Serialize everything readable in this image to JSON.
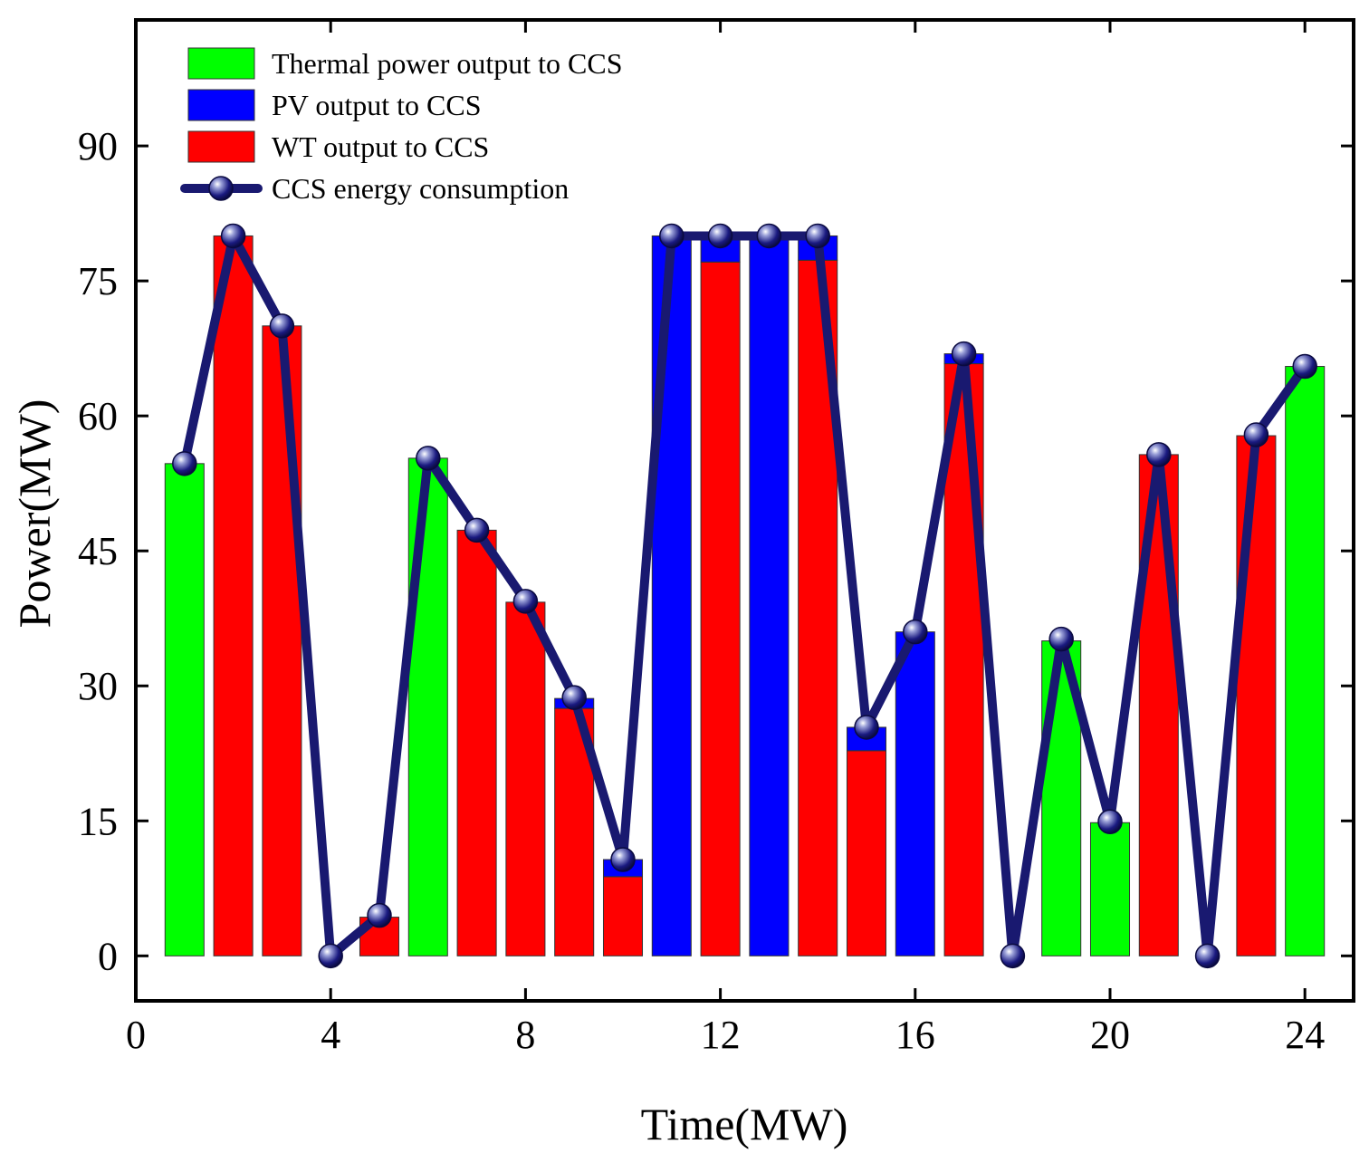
{
  "chart_data": {
    "type": "bar",
    "stacked": true,
    "xlabel": "Time(MW)",
    "ylabel": "Power(MW)",
    "xlim": [
      0,
      25
    ],
    "ylim": [
      -5,
      104
    ],
    "xticks": [
      0,
      4,
      8,
      12,
      16,
      20,
      24
    ],
    "yticks": [
      0,
      15,
      30,
      45,
      60,
      75,
      90
    ],
    "x": [
      1,
      2,
      3,
      4,
      5,
      6,
      7,
      8,
      9,
      10,
      11,
      12,
      13,
      14,
      15,
      16,
      17,
      18,
      19,
      20,
      21,
      22,
      23,
      24
    ],
    "series": [
      {
        "name": "WT output to CCS",
        "color": "#ff0000",
        "values": [
          0,
          80,
          70,
          0,
          4.3,
          0,
          47.3,
          39.3,
          27.5,
          8.8,
          0,
          77.1,
          0,
          77.3,
          22.8,
          0,
          65.8,
          0,
          0,
          0,
          55.7,
          0,
          57.8,
          0
        ]
      },
      {
        "name": "PV output to CCS",
        "color": "#0000ff",
        "values": [
          0,
          0,
          0,
          0,
          0,
          0,
          0,
          0,
          1.1,
          1.9,
          80,
          2.9,
          80,
          2.7,
          2.6,
          36,
          1.1,
          0,
          0,
          0,
          0,
          0,
          0,
          0
        ]
      },
      {
        "name": "Thermal power output to CCS",
        "color": "#00ff00",
        "values": [
          54.7,
          0,
          0,
          0,
          0,
          55.3,
          0,
          0,
          0,
          0,
          0,
          0,
          0,
          0,
          0,
          0,
          0,
          0,
          35,
          14.8,
          0,
          0,
          0,
          65.5
        ]
      }
    ],
    "line": {
      "name": "CCS energy consumption",
      "color": "#191970",
      "values": [
        54.7,
        80,
        70,
        0,
        4.5,
        55.3,
        47.3,
        39.4,
        28.7,
        10.7,
        80,
        80,
        80,
        80,
        25.4,
        36,
        66.9,
        0,
        35.2,
        14.9,
        55.7,
        0,
        57.9,
        65.5
      ]
    },
    "legend": {
      "position": "top-left",
      "entries": [
        {
          "label": "Thermal power output to CCS",
          "kind": "bar",
          "color": "#00ff00"
        },
        {
          "label": "PV output to CCS",
          "kind": "bar",
          "color": "#0000ff"
        },
        {
          "label": "WT output to CCS",
          "kind": "bar",
          "color": "#ff0000"
        },
        {
          "label": "CCS energy consumption",
          "kind": "line",
          "color": "#191970"
        }
      ]
    }
  }
}
